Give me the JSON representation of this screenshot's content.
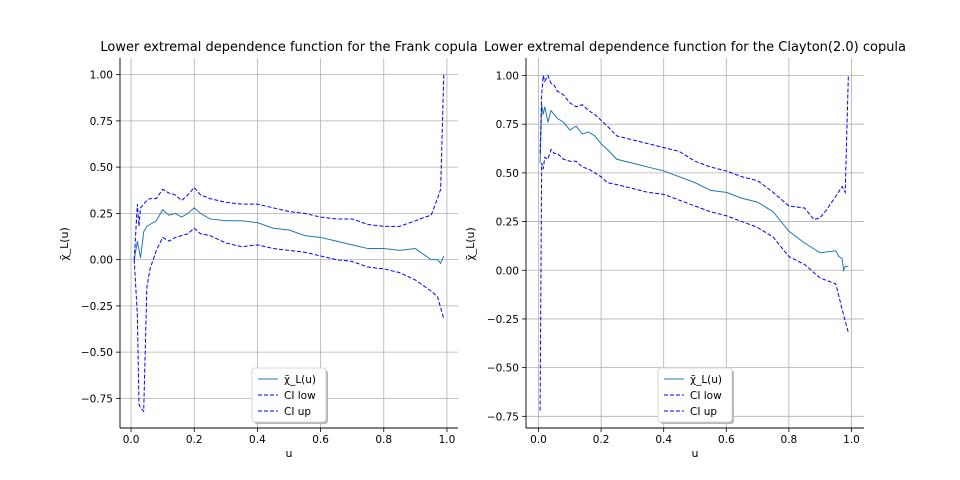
{
  "chart_data": [
    {
      "type": "line",
      "title": "Lower extremal dependence function for the Frank copula",
      "xlabel": "u",
      "ylabel": "χ̄_L(u)",
      "xlim": [
        -0.035,
        1.035
      ],
      "ylim": [
        -0.91,
        1.09
      ],
      "xticks": [
        "0.0",
        "0.2",
        "0.4",
        "0.6",
        "0.8",
        "1.0"
      ],
      "yticks": [
        "−0.75",
        "−0.50",
        "−0.25",
        "0.00",
        "0.25",
        "0.50",
        "0.75",
        "1.00"
      ],
      "grid": true,
      "legend_position": "lower center",
      "series": [
        {
          "name": "χ̄_L(u)",
          "color": "#1f77b4",
          "style": "solid",
          "x": [
            0.01,
            0.02,
            0.03,
            0.04,
            0.05,
            0.06,
            0.08,
            0.1,
            0.12,
            0.14,
            0.16,
            0.18,
            0.2,
            0.22,
            0.25,
            0.3,
            0.35,
            0.4,
            0.45,
            0.5,
            0.55,
            0.6,
            0.65,
            0.7,
            0.75,
            0.8,
            0.85,
            0.9,
            0.95,
            0.97,
            0.98,
            0.99
          ],
          "y": [
            0.0,
            0.1,
            0.01,
            0.15,
            0.18,
            0.19,
            0.21,
            0.27,
            0.24,
            0.25,
            0.23,
            0.25,
            0.28,
            0.25,
            0.22,
            0.21,
            0.21,
            0.2,
            0.17,
            0.16,
            0.13,
            0.12,
            0.1,
            0.08,
            0.06,
            0.06,
            0.05,
            0.06,
            0.0,
            0.0,
            -0.02,
            0.02
          ]
        },
        {
          "name": "CI low",
          "color": "#0000ff",
          "style": "dashed",
          "x": [
            0.01,
            0.02,
            0.025,
            0.03,
            0.04,
            0.05,
            0.06,
            0.08,
            0.1,
            0.12,
            0.14,
            0.16,
            0.18,
            0.2,
            0.22,
            0.25,
            0.3,
            0.35,
            0.4,
            0.45,
            0.5,
            0.55,
            0.6,
            0.65,
            0.7,
            0.75,
            0.8,
            0.85,
            0.9,
            0.95,
            0.97,
            0.99
          ],
          "y": [
            0.0,
            -0.3,
            -0.78,
            -0.8,
            -0.82,
            -0.15,
            -0.05,
            0.05,
            0.12,
            0.1,
            0.12,
            0.13,
            0.14,
            0.17,
            0.14,
            0.13,
            0.09,
            0.07,
            0.08,
            0.06,
            0.05,
            0.04,
            0.02,
            0.0,
            -0.01,
            -0.04,
            -0.05,
            -0.07,
            -0.11,
            -0.17,
            -0.2,
            -0.32
          ]
        },
        {
          "name": "CI up",
          "color": "#0000ff",
          "style": "dashed",
          "x": [
            0.01,
            0.02,
            0.025,
            0.03,
            0.04,
            0.05,
            0.06,
            0.08,
            0.1,
            0.12,
            0.14,
            0.16,
            0.18,
            0.2,
            0.22,
            0.25,
            0.3,
            0.35,
            0.4,
            0.45,
            0.5,
            0.55,
            0.6,
            0.65,
            0.7,
            0.75,
            0.8,
            0.85,
            0.9,
            0.93,
            0.95,
            0.97,
            0.98,
            0.99
          ],
          "y": [
            0.0,
            0.3,
            0.18,
            0.28,
            0.3,
            0.32,
            0.33,
            0.33,
            0.38,
            0.36,
            0.35,
            0.32,
            0.35,
            0.39,
            0.35,
            0.33,
            0.31,
            0.3,
            0.3,
            0.28,
            0.26,
            0.25,
            0.23,
            0.22,
            0.22,
            0.19,
            0.18,
            0.18,
            0.21,
            0.23,
            0.24,
            0.33,
            0.38,
            1.0
          ]
        }
      ]
    },
    {
      "type": "line",
      "title": "Lower extremal dependence function for the Clayton(2.0) copula",
      "xlabel": "u",
      "ylabel": "χ̄_L(u)",
      "xlim": [
        -0.04,
        1.04
      ],
      "ylim": [
        -0.81,
        1.09
      ],
      "xticks": [
        "0.0",
        "0.2",
        "0.4",
        "0.6",
        "0.8",
        "1.0"
      ],
      "yticks": [
        "−0.75",
        "−0.50",
        "−0.25",
        "0.00",
        "0.25",
        "0.50",
        "0.75",
        "1.00"
      ],
      "grid": true,
      "legend_position": "lower center",
      "series": [
        {
          "name": "χ̄_L(u)",
          "color": "#1f77b4",
          "style": "solid",
          "x": [
            0.005,
            0.01,
            0.015,
            0.02,
            0.03,
            0.04,
            0.05,
            0.06,
            0.08,
            0.1,
            0.12,
            0.14,
            0.16,
            0.18,
            0.2,
            0.22,
            0.25,
            0.3,
            0.35,
            0.4,
            0.45,
            0.5,
            0.55,
            0.6,
            0.65,
            0.7,
            0.75,
            0.8,
            0.85,
            0.9,
            0.95,
            0.96,
            0.97,
            0.975,
            0.98,
            0.99
          ],
          "y": [
            0.55,
            0.85,
            0.8,
            0.84,
            0.76,
            0.82,
            0.8,
            0.78,
            0.76,
            0.72,
            0.74,
            0.7,
            0.71,
            0.69,
            0.65,
            0.62,
            0.57,
            0.55,
            0.53,
            0.51,
            0.48,
            0.45,
            0.41,
            0.4,
            0.37,
            0.35,
            0.3,
            0.2,
            0.14,
            0.09,
            0.1,
            0.07,
            0.06,
            0.0,
            0.02,
            0.02
          ]
        },
        {
          "name": "CI low",
          "color": "#0000ff",
          "style": "dashed",
          "x": [
            0.005,
            0.01,
            0.015,
            0.02,
            0.03,
            0.04,
            0.05,
            0.06,
            0.08,
            0.1,
            0.12,
            0.14,
            0.16,
            0.18,
            0.2,
            0.22,
            0.25,
            0.3,
            0.35,
            0.4,
            0.45,
            0.5,
            0.55,
            0.6,
            0.65,
            0.7,
            0.75,
            0.8,
            0.85,
            0.9,
            0.95,
            0.97,
            0.99
          ],
          "y": [
            -0.72,
            0.55,
            0.52,
            0.58,
            0.57,
            0.62,
            0.6,
            0.6,
            0.57,
            0.56,
            0.56,
            0.53,
            0.52,
            0.5,
            0.48,
            0.45,
            0.44,
            0.42,
            0.4,
            0.39,
            0.36,
            0.33,
            0.3,
            0.28,
            0.25,
            0.22,
            0.17,
            0.07,
            0.03,
            -0.04,
            -0.07,
            -0.2,
            -0.32
          ]
        },
        {
          "name": "CI up",
          "color": "#0000ff",
          "style": "dashed",
          "x": [
            0.005,
            0.01,
            0.015,
            0.02,
            0.03,
            0.04,
            0.05,
            0.06,
            0.08,
            0.1,
            0.12,
            0.14,
            0.16,
            0.18,
            0.2,
            0.22,
            0.25,
            0.3,
            0.35,
            0.4,
            0.45,
            0.5,
            0.55,
            0.6,
            0.65,
            0.7,
            0.75,
            0.8,
            0.85,
            0.88,
            0.9,
            0.92,
            0.95,
            0.97,
            0.98,
            0.99
          ],
          "y": [
            0.6,
            0.9,
            1.0,
            0.97,
            1.0,
            0.96,
            0.95,
            0.92,
            0.9,
            0.86,
            0.84,
            0.85,
            0.82,
            0.8,
            0.77,
            0.74,
            0.69,
            0.67,
            0.65,
            0.63,
            0.61,
            0.56,
            0.53,
            0.51,
            0.48,
            0.46,
            0.4,
            0.33,
            0.32,
            0.26,
            0.27,
            0.31,
            0.38,
            0.43,
            0.4,
            1.0
          ]
        }
      ]
    }
  ]
}
